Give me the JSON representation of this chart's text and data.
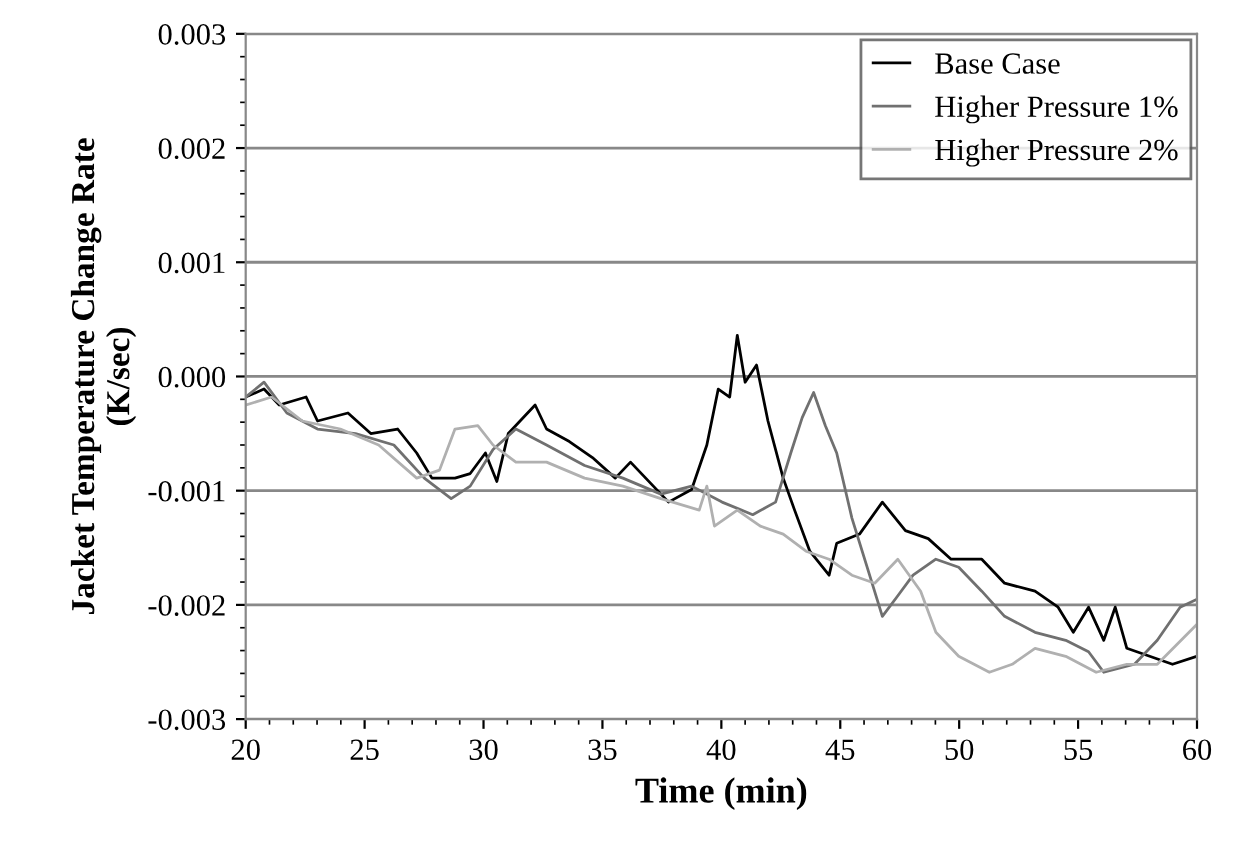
{
  "chart_data": {
    "type": "line",
    "xlabel": "Time (min)",
    "ylabel": "Jacket Temperature Change Rate\n(K/sec)",
    "xlim": [
      20,
      60
    ],
    "xticks": [
      20,
      25,
      30,
      35,
      40,
      45,
      50,
      55,
      60
    ],
    "ylim": [
      -0.003,
      0.003
    ],
    "yticks": [
      {
        "value": -0.003,
        "label": "-0.003"
      },
      {
        "value": -0.002,
        "label": "-0.002"
      },
      {
        "value": -0.001,
        "label": "-0.001"
      },
      {
        "value": 0,
        "label": "0.000"
      },
      {
        "value": 0.001,
        "label": "0.001"
      },
      {
        "value": 0.002,
        "label": "0.002"
      },
      {
        "value": 0.003,
        "label": "0.003"
      }
    ],
    "grid": "y",
    "legend": "top right",
    "line_style": "solid",
    "series": [
      {
        "name": "Base Case",
        "color": "#000000",
        "x": [
          20.0,
          20.77,
          21.41,
          22.54,
          23.02,
          24.3,
          25.26,
          26.39,
          27.19,
          27.83,
          28.8,
          29.44,
          30.08,
          30.56,
          31.04,
          32.17,
          32.65,
          33.61,
          34.58,
          35.54,
          36.18,
          37.14,
          37.78,
          38.75,
          39.39,
          39.87,
          40.35,
          40.67,
          41.0,
          41.48,
          41.96,
          42.6,
          43.08,
          43.72,
          44.53,
          44.85,
          45.81,
          46.77,
          47.74,
          48.7,
          49.66,
          50.95,
          51.91,
          53.19,
          54.16,
          54.8,
          55.44,
          56.08,
          56.56,
          57.05,
          58.01,
          58.97,
          60.0
        ],
        "values": [
          -0.00018,
          -0.00011,
          -0.00025,
          -0.00018,
          -0.00039,
          -0.00032,
          -0.0005,
          -0.00046,
          -0.00067,
          -0.00089,
          -0.00089,
          -0.00085,
          -0.00067,
          -0.00092,
          -0.0005,
          -0.00025,
          -0.00046,
          -0.00057,
          -0.00071,
          -0.00089,
          -0.00075,
          -0.00096,
          -0.0011,
          -0.00099,
          -0.0006,
          -0.00011,
          -0.00018,
          0.00036,
          -5e-05,
          0.0001,
          -0.00039,
          -0.00089,
          -0.00117,
          -0.00153,
          -0.00174,
          -0.00146,
          -0.00138,
          -0.0011,
          -0.00135,
          -0.00142,
          -0.0016,
          -0.0016,
          -0.00181,
          -0.00188,
          -0.00202,
          -0.00224,
          -0.00202,
          -0.00231,
          -0.00202,
          -0.00238,
          -0.00245,
          -0.00252,
          -0.00245
        ]
      },
      {
        "name": "Higher Pressure 1%",
        "color": "#707070",
        "x": [
          20.0,
          20.77,
          21.73,
          23.02,
          24.62,
          26.23,
          27.51,
          28.64,
          29.44,
          30.4,
          31.36,
          32.65,
          34.25,
          35.86,
          37.46,
          38.75,
          40.03,
          41.32,
          42.28,
          42.92,
          43.4,
          43.88,
          44.37,
          44.85,
          45.49,
          46.13,
          46.77,
          47.42,
          48.06,
          49.02,
          49.98,
          50.95,
          51.91,
          53.19,
          54.48,
          55.44,
          56.08,
          57.37,
          58.33,
          59.29,
          60.0
        ],
        "values": [
          -0.00018,
          -5e-05,
          -0.00032,
          -0.00046,
          -0.0005,
          -0.0006,
          -0.00089,
          -0.00107,
          -0.00096,
          -0.00064,
          -0.00046,
          -0.0006,
          -0.00078,
          -0.00089,
          -0.00103,
          -0.00096,
          -0.0011,
          -0.00121,
          -0.0011,
          -0.00067,
          -0.00036,
          -0.00014,
          -0.00043,
          -0.00067,
          -0.00124,
          -0.00167,
          -0.0021,
          -0.00192,
          -0.00174,
          -0.0016,
          -0.00167,
          -0.00188,
          -0.0021,
          -0.00224,
          -0.00231,
          -0.00241,
          -0.00259,
          -0.00252,
          -0.00231,
          -0.00202,
          -0.00195
        ]
      },
      {
        "name": "Higher Pressure 2%",
        "color": "#b0b0b0",
        "x": [
          20.0,
          21.09,
          22.38,
          23.98,
          25.59,
          27.19,
          28.15,
          28.8,
          29.76,
          30.4,
          31.36,
          32.65,
          34.25,
          35.86,
          37.46,
          39.07,
          39.39,
          39.71,
          40.67,
          41.64,
          42.6,
          43.56,
          44.53,
          45.49,
          46.45,
          47.42,
          48.38,
          49.02,
          49.98,
          51.27,
          52.23,
          53.19,
          54.48,
          55.76,
          57.05,
          58.33,
          60.0
        ],
        "values": [
          -0.00025,
          -0.00018,
          -0.00039,
          -0.00046,
          -0.0006,
          -0.00089,
          -0.00082,
          -0.00046,
          -0.00043,
          -0.0006,
          -0.00075,
          -0.00075,
          -0.00089,
          -0.00096,
          -0.00107,
          -0.00117,
          -0.00096,
          -0.00131,
          -0.00117,
          -0.00131,
          -0.00138,
          -0.00153,
          -0.0016,
          -0.00174,
          -0.00181,
          -0.0016,
          -0.00188,
          -0.00224,
          -0.00245,
          -0.00259,
          -0.00252,
          -0.00238,
          -0.00245,
          -0.00259,
          -0.00252,
          -0.00252,
          -0.00217
        ]
      }
    ]
  }
}
